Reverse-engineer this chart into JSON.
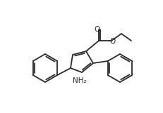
{
  "background": "#ffffff",
  "line_color": "#2a2a2a",
  "line_width": 1.3,
  "fig_width": 2.31,
  "fig_height": 1.61,
  "dpi": 100,
  "xlim": [
    0,
    231
  ],
  "ylim": [
    0,
    161
  ]
}
